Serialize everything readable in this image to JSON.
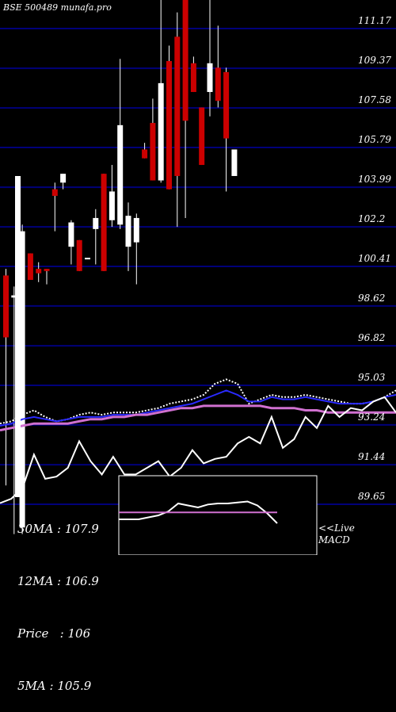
{
  "title": "BSE 500489 munafa.pro",
  "colors": {
    "background": "#000000",
    "grid": "#00007a",
    "up_candle": "#ffffff",
    "down_candle": "#cc0000",
    "blue_line": "#2a2aff",
    "pink_line": "#d070d0",
    "white_line": "#ffffff"
  },
  "stats": [
    {
      "label": "30MA",
      "value": "107.9"
    },
    {
      "label": "12MA",
      "value": "106.9"
    },
    {
      "label": "Price",
      "value": "106"
    },
    {
      "label": "5MA",
      "value": "105.9"
    }
  ],
  "live_label": [
    "<<Live",
    "MACD"
  ],
  "chart_data": {
    "type": "candlestick",
    "title": "BSE 500489 munafa.pro",
    "y_ticks": [
      111.17,
      109.37,
      107.58,
      105.79,
      103.99,
      102.2,
      100.41,
      98.62,
      96.82,
      95.03,
      93.24,
      91.44,
      89.65
    ],
    "y_tick_labels": [
      "111.17",
      "109.37",
      "107.58",
      "105.79",
      "103.99",
      "102.2",
      "100.41",
      "98.62",
      "96.82",
      "95.03",
      "93.24",
      "91.44",
      "89.65"
    ],
    "ylim": [
      88.9,
      112.7
    ],
    "candles": [
      {
        "open": 100.0,
        "high": 100.3,
        "low": 90.5,
        "close": 97.2
      },
      {
        "open": 99.0,
        "high": 99.5,
        "low": 88.3,
        "close": 99.1
      },
      {
        "open": 88.6,
        "high": 102.3,
        "low": 88.3,
        "close": 102.0
      },
      {
        "open": 101.0,
        "high": 101.0,
        "low": 99.8,
        "close": 99.8
      },
      {
        "open": 100.3,
        "high": 100.6,
        "low": 99.7,
        "close": 100.1
      },
      {
        "open": 100.3,
        "high": 100.3,
        "low": 99.6,
        "close": 100.2
      },
      {
        "open": 103.9,
        "high": 104.2,
        "low": 102.0,
        "close": 103.6
      },
      {
        "open": 104.2,
        "high": 104.6,
        "low": 103.9,
        "close": 104.6
      },
      {
        "open": 101.3,
        "high": 102.5,
        "low": 100.5,
        "close": 102.4
      },
      {
        "open": 101.6,
        "high": 101.6,
        "low": 100.2,
        "close": 100.2
      },
      {
        "open": 100.8,
        "high": 100.8,
        "low": 100.8,
        "close": 100.8
      },
      {
        "open": 102.1,
        "high": 103.0,
        "low": 100.5,
        "close": 102.6
      },
      {
        "open": 104.6,
        "high": 104.6,
        "low": 100.2,
        "close": 100.2
      },
      {
        "open": 102.5,
        "high": 105.0,
        "low": 102.2,
        "close": 103.8
      },
      {
        "open": 102.3,
        "high": 109.8,
        "low": 102.1,
        "close": 106.8
      },
      {
        "open": 101.3,
        "high": 103.3,
        "low": 100.2,
        "close": 102.7
      },
      {
        "open": 101.5,
        "high": 102.8,
        "low": 99.6,
        "close": 102.6
      },
      {
        "open": 105.7,
        "high": 106.0,
        "low": 105.3,
        "close": 105.3
      },
      {
        "open": 106.9,
        "high": 108.0,
        "low": 104.3,
        "close": 104.3
      },
      {
        "open": 104.3,
        "high": 113.0,
        "low": 104.2,
        "close": 108.7
      },
      {
        "open": 109.7,
        "high": 110.4,
        "low": 103.9,
        "close": 103.9
      },
      {
        "open": 110.8,
        "high": 111.9,
        "low": 102.2,
        "close": 104.5
      },
      {
        "open": 112.7,
        "high": 112.8,
        "low": 102.6,
        "close": 107.0
      },
      {
        "open": 109.6,
        "high": 109.9,
        "low": 108.3,
        "close": 108.3
      },
      {
        "open": 107.6,
        "high": 107.6,
        "low": 105.0,
        "close": 105.0
      },
      {
        "open": 108.3,
        "high": 112.7,
        "low": 107.2,
        "close": 109.6
      },
      {
        "open": 109.4,
        "high": 111.3,
        "low": 107.6,
        "close": 107.9
      },
      {
        "open": 109.2,
        "high": 109.4,
        "low": 103.8,
        "close": 106.2
      },
      {
        "open": 104.5,
        "high": 105.7,
        "low": 104.5,
        "close": 105.7
      }
    ],
    "overlay_series": [
      {
        "color": "#ffffff",
        "style": "dotted",
        "values": [
          93.3,
          93.4,
          93.7,
          93.9,
          93.6,
          93.4,
          93.5,
          93.7,
          93.8,
          93.7,
          93.8,
          93.8,
          93.8,
          93.9,
          94.0,
          94.2,
          94.3,
          94.4,
          94.6,
          95.1,
          95.3,
          95.1,
          94.2,
          94.4,
          94.6,
          94.5,
          94.5,
          94.6,
          94.5,
          94.4,
          94.3,
          94.2,
          94.2,
          94.3,
          94.5,
          94.8
        ]
      },
      {
        "color": "#2a2aff",
        "style": "solid",
        "values": [
          93.2,
          93.3,
          93.5,
          93.6,
          93.5,
          93.4,
          93.5,
          93.6,
          93.6,
          93.6,
          93.7,
          93.7,
          93.7,
          93.8,
          93.9,
          94.0,
          94.1,
          94.2,
          94.4,
          94.6,
          94.8,
          94.6,
          94.3,
          94.3,
          94.5,
          94.4,
          94.4,
          94.5,
          94.4,
          94.3,
          94.2,
          94.2,
          94.2,
          94.3,
          94.5,
          94.6
        ]
      },
      {
        "color": "#d070d0",
        "style": "solid",
        "values": [
          93.0,
          93.1,
          93.2,
          93.3,
          93.3,
          93.3,
          93.3,
          93.4,
          93.5,
          93.5,
          93.6,
          93.6,
          93.7,
          93.7,
          93.8,
          93.9,
          94.0,
          94.0,
          94.1,
          94.1,
          94.1,
          94.1,
          94.1,
          94.1,
          94.0,
          94.0,
          94.0,
          93.9,
          93.9,
          93.8,
          93.8,
          93.8,
          93.8,
          93.8,
          93.8,
          93.8
        ]
      },
      {
        "color": "#ffffff",
        "style": "solid",
        "values": [
          89.7,
          89.9,
          90.4,
          91.9,
          90.8,
          90.9,
          91.3,
          92.5,
          91.6,
          91.0,
          91.8,
          91.0,
          91.0,
          91.3,
          91.6,
          90.9,
          91.3,
          92.1,
          91.5,
          91.7,
          91.8,
          92.4,
          92.7,
          92.4,
          93.6,
          92.2,
          92.6,
          93.6,
          93.1,
          94.1,
          93.6,
          94.0,
          93.9,
          94.3,
          94.5,
          93.8
        ]
      }
    ],
    "sub_panel": {
      "label": "<<Live MACD",
      "series": [
        {
          "color": "#ffffff",
          "values": [
            0.0,
            0.0,
            0.0,
            0.1,
            0.2,
            0.4,
            0.8,
            0.7,
            0.6,
            0.75,
            0.8,
            0.8,
            0.85,
            0.9,
            0.7,
            0.3,
            -0.2
          ]
        },
        {
          "color": "#d070d0",
          "values": [
            0.35,
            0.35,
            0.35,
            0.35,
            0.35,
            0.35,
            0.35,
            0.35,
            0.35,
            0.35,
            0.35,
            0.35,
            0.35,
            0.35,
            0.35,
            0.35,
            0.35
          ]
        }
      ]
    }
  }
}
